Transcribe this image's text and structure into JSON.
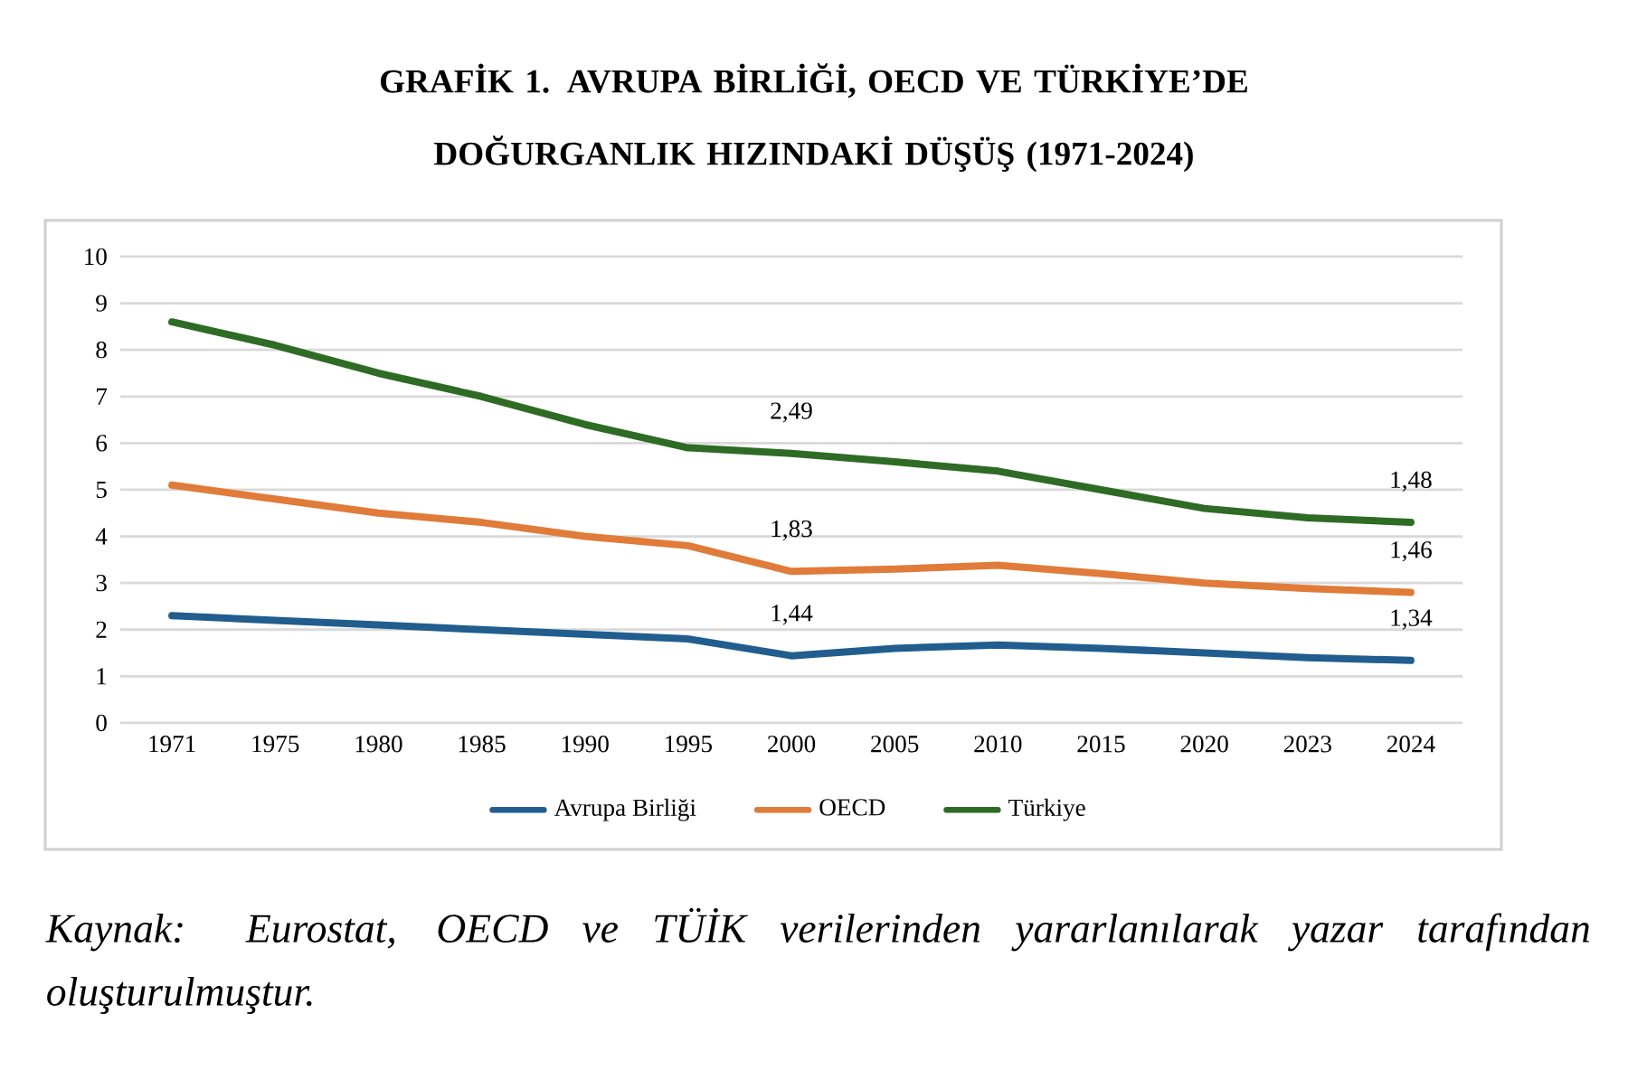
{
  "chart_data": {
    "type": "line",
    "title": "GRAFİK 1. AVRUPA BİRLİĞİ, OECD VE TÜRKİYE’DE DOĞURGANLIK HIZINDAKİ DÜŞÜŞ (1971-2024)",
    "categories": [
      "1971",
      "1975",
      "1980",
      "1985",
      "1990",
      "1995",
      "2000",
      "2005",
      "2010",
      "2015",
      "2020",
      "2023",
      "2024"
    ],
    "series": [
      {
        "name": "Avrupa Birliği",
        "color": "#215d8e",
        "values": [
          2.3,
          2.2,
          2.1,
          2.0,
          1.9,
          1.8,
          1.44,
          1.6,
          1.67,
          1.6,
          1.5,
          1.4,
          1.34
        ],
        "value_labels": [
          null,
          null,
          null,
          null,
          null,
          null,
          "1,44",
          null,
          null,
          null,
          null,
          null,
          "1,34"
        ]
      },
      {
        "name": "OECD",
        "color": "#e07b39",
        "values": [
          5.1,
          4.8,
          4.5,
          4.3,
          4.0,
          3.8,
          3.25,
          3.3,
          3.38,
          3.2,
          3.0,
          2.88,
          2.8
        ]
      },
      {
        "name": "Türkiye",
        "color": "#2e6b24",
        "values": [
          8.6,
          8.1,
          7.5,
          7.0,
          6.4,
          5.9,
          5.78,
          5.6,
          5.4,
          5.0,
          4.6,
          4.4,
          4.3
        ]
      }
    ],
    "ylim": [
      0,
      10
    ],
    "yticks": [
      0,
      1,
      2,
      3,
      4,
      5,
      6,
      7,
      8,
      9,
      10
    ],
    "grid": "y",
    "legend": "bottom",
    "annotations": [
      "Kaynak: Eurostat, OECD ve TÜİK verilerinden yararlanılarak yazar tarafından oluşturulmuştur.",
      {
        "text": "1,83",
        "x": "2000",
        "y": 3.25
      },
      {
        "text": "1,46",
        "x": "2024",
        "y": 2.8
      },
      {
        "text": "2,49",
        "x": "2000",
        "y": 5.78
      },
      {
        "text": "1,48",
        "x": "2024",
        "y": 4.3
      }
    ]
  }
}
